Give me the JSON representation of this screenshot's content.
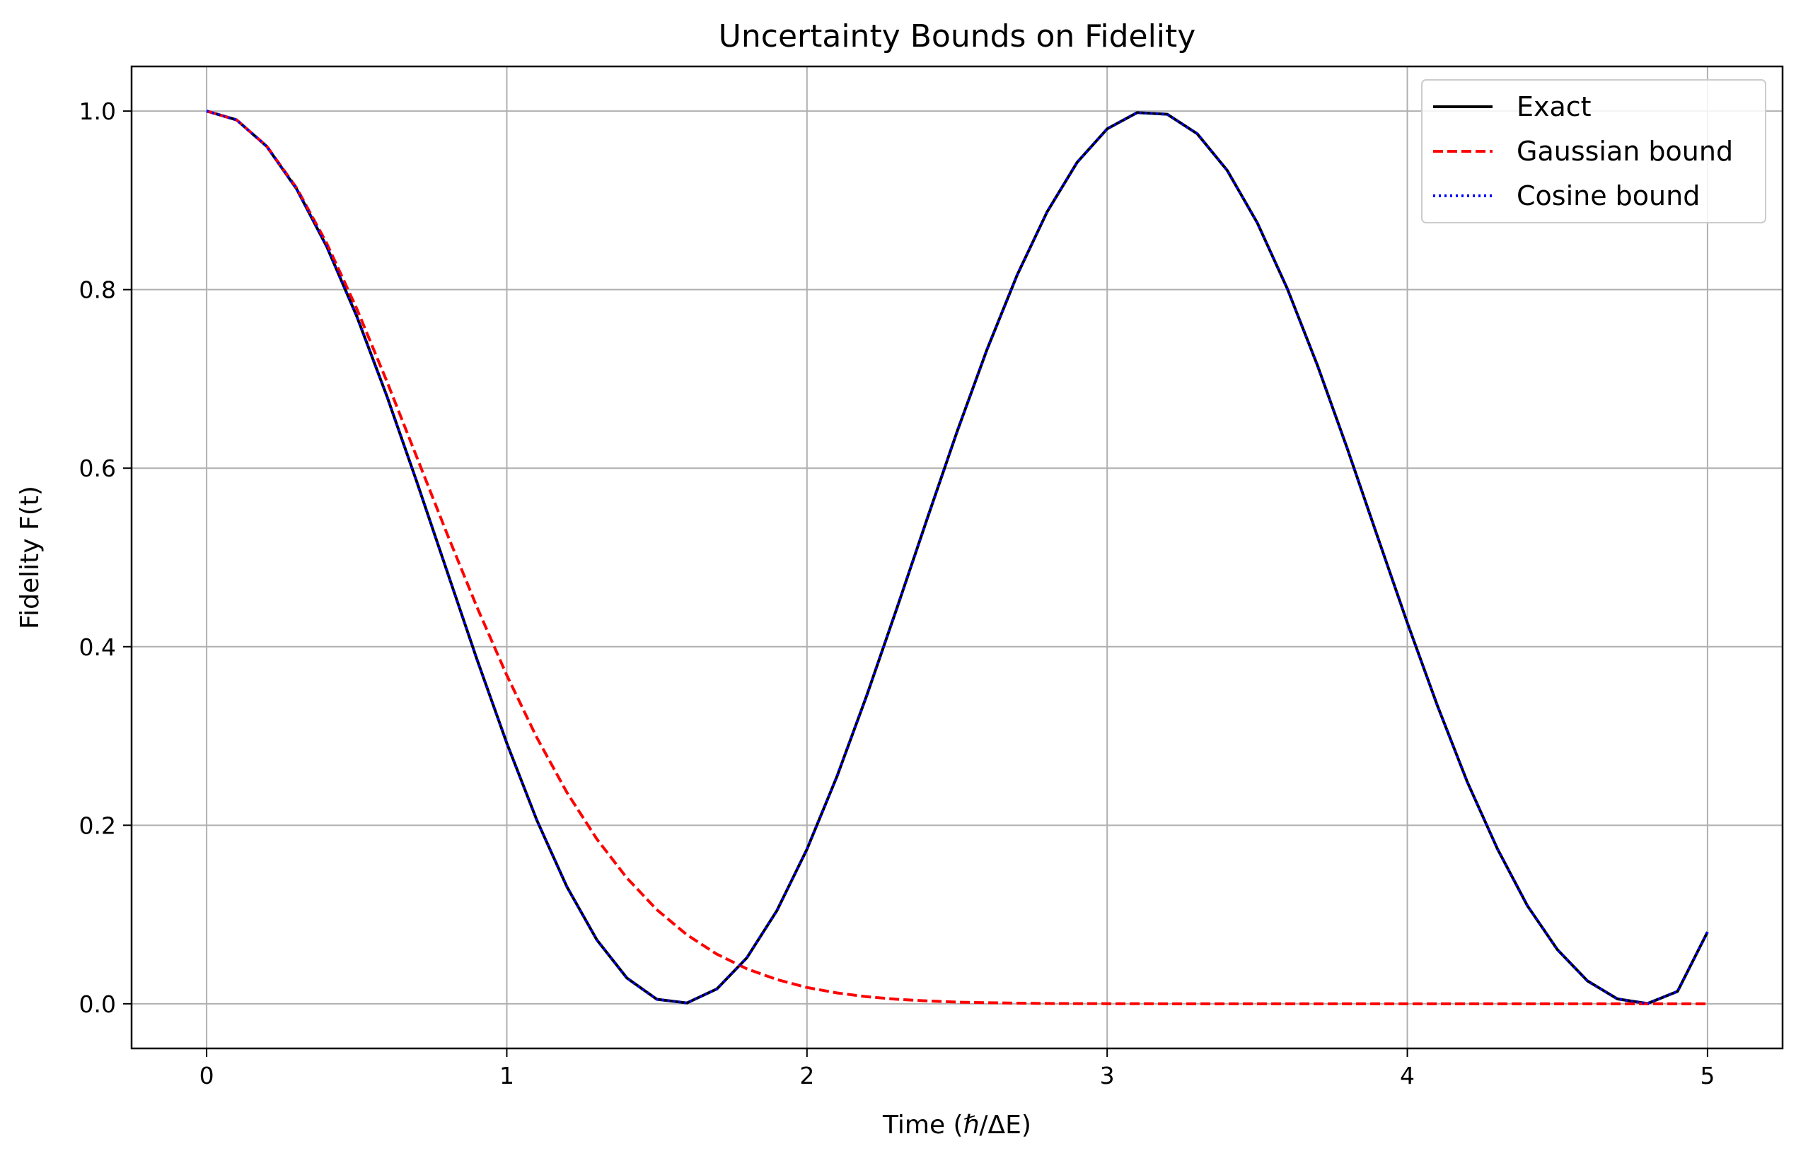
{
  "chart_data": {
    "type": "line",
    "title": "Uncertainty Bounds on Fidelity",
    "xlabel": "Time (ℏ/ΔE)",
    "ylabel": "Fidelity F(t)",
    "xlim": [
      -0.25,
      5.25
    ],
    "ylim": [
      -0.05,
      1.05
    ],
    "xticks": [
      0,
      1,
      2,
      3,
      4,
      5
    ],
    "xtick_labels": [
      "0",
      "1",
      "2",
      "3",
      "4",
      "5"
    ],
    "yticks": [
      0.0,
      0.2,
      0.4,
      0.6,
      0.8,
      1.0
    ],
    "ytick_labels": [
      "0.0",
      "0.2",
      "0.4",
      "0.6",
      "0.8",
      "1.0"
    ],
    "grid": true,
    "legend_position": "top-right",
    "x": [
      0.0,
      0.1,
      0.2,
      0.3,
      0.4,
      0.5,
      0.6,
      0.7,
      0.8,
      0.9,
      1.0,
      1.1,
      1.2,
      1.3,
      1.4,
      1.5,
      1.6,
      1.7,
      1.8,
      1.9,
      2.0,
      2.1,
      2.2,
      2.3,
      2.4,
      2.5,
      2.6,
      2.7,
      2.8,
      2.9,
      3.0,
      3.1,
      3.2,
      3.3,
      3.4,
      3.5,
      3.6,
      3.7,
      3.8,
      3.9,
      4.0,
      4.1,
      4.2,
      4.3,
      4.4,
      4.5,
      4.6,
      4.7,
      4.8,
      4.9,
      5.0
    ],
    "series": [
      {
        "name": "Exact",
        "color": "#000000",
        "style": "solid",
        "values": [
          1.0,
          0.9901,
          0.9605,
          0.9127,
          0.8484,
          0.7702,
          0.6812,
          0.585,
          0.4854,
          0.3864,
          0.2919,
          0.2057,
          0.1313,
          0.0716,
          0.0289,
          0.005,
          0.0009,
          0.0167,
          0.0516,
          0.1045,
          0.1732,
          0.2548,
          0.3462,
          0.4435,
          0.543,
          0.6409,
          0.7331,
          0.8163,
          0.8871,
          0.9425,
          0.9801,
          0.9983,
          0.9965,
          0.9746,
          0.9336,
          0.8749,
          0.8012,
          0.7157,
          0.6219,
          0.524,
          0.4268,
          0.3341,
          0.2483,
          0.1736,
          0.1098,
          0.0606,
          0.0256,
          0.0054,
          0.0003,
          0.0138,
          0.0804
        ]
      },
      {
        "name": "Gaussian bound",
        "color": "#ff0000",
        "style": "dashed",
        "values": [
          1.0,
          0.99,
          0.9608,
          0.9139,
          0.8521,
          0.7788,
          0.6977,
          0.6126,
          0.5273,
          0.4449,
          0.3679,
          0.2982,
          0.2369,
          0.1845,
          0.1409,
          0.1054,
          0.0773,
          0.0556,
          0.0392,
          0.0271,
          0.0183,
          0.0122,
          0.0079,
          0.005,
          0.0032,
          0.0019,
          0.0012,
          0.0007,
          0.0004,
          0.0002,
          0.0001,
          0.0001,
          0.0,
          0.0,
          0.0,
          0.0,
          0.0,
          0.0,
          0.0,
          0.0,
          0.0,
          0.0,
          0.0,
          0.0,
          0.0,
          0.0,
          0.0,
          0.0,
          0.0,
          0.0,
          0.0
        ]
      },
      {
        "name": "Cosine bound",
        "color": "#0000ff",
        "style": "dotted",
        "values": [
          1.0,
          0.9901,
          0.9605,
          0.9127,
          0.8484,
          0.7702,
          0.6812,
          0.585,
          0.4854,
          0.3864,
          0.2919,
          0.2057,
          0.1313,
          0.0716,
          0.0289,
          0.005,
          0.0009,
          0.0167,
          0.0516,
          0.1045,
          0.1732,
          0.2548,
          0.3462,
          0.4435,
          0.543,
          0.6409,
          0.7331,
          0.8163,
          0.8871,
          0.9425,
          0.9801,
          0.9983,
          0.9965,
          0.9746,
          0.9336,
          0.8749,
          0.8012,
          0.7157,
          0.6219,
          0.524,
          0.4268,
          0.3341,
          0.2483,
          0.1736,
          0.1098,
          0.0606,
          0.0256,
          0.0054,
          0.0003,
          0.0138,
          0.0804
        ]
      }
    ]
  }
}
